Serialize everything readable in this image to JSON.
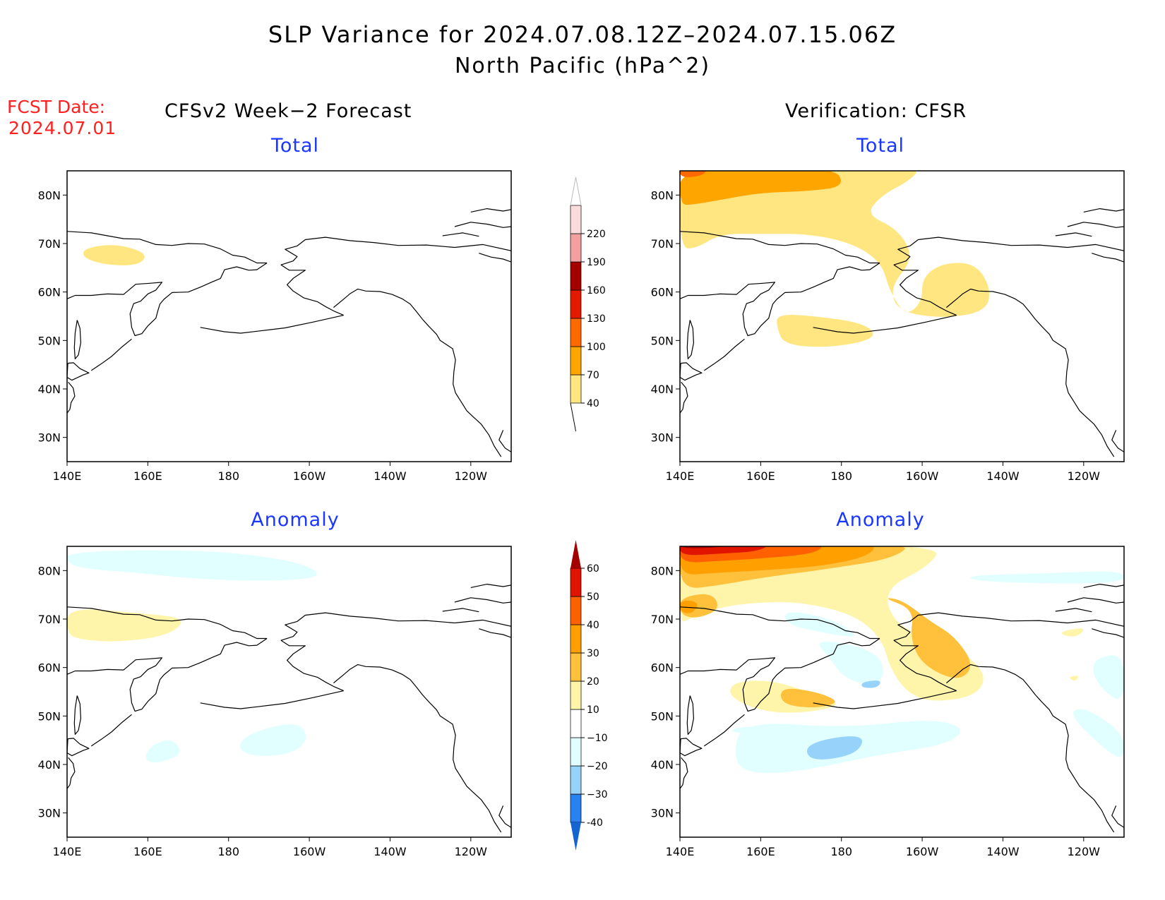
{
  "title": {
    "line1": "SLP Variance for 2024.07.08.12Z–2024.07.15.06Z",
    "line2": "North Pacific (hPa^2)"
  },
  "forecast_date": {
    "label": "FCST Date:",
    "value": "2024.07.01"
  },
  "columns": {
    "left": "CFSv2 Week−2 Forecast",
    "right": "Verification: CFSR"
  },
  "panels": {
    "top_left_title": "Total",
    "top_right_title": "Total",
    "bottom_left_title": "Anomaly",
    "bottom_right_title": "Anomaly"
  },
  "axes": {
    "lat_labels": [
      "80N",
      "70N",
      "60N",
      "50N",
      "40N",
      "30N"
    ],
    "lat_values": [
      80,
      70,
      60,
      50,
      40,
      30
    ],
    "lon_labels": [
      "140E",
      "160E",
      "180",
      "160W",
      "140W",
      "120W"
    ],
    "lon_values": [
      140,
      160,
      180,
      200,
      220,
      240
    ],
    "lat_range": [
      25,
      85
    ],
    "lon_range": [
      140,
      250
    ]
  },
  "colorbars": {
    "total": {
      "levels": [
        40,
        70,
        100,
        130,
        160,
        190,
        220
      ],
      "labels": [
        "40",
        "70",
        "100",
        "130",
        "160",
        "190",
        "220"
      ],
      "colors": [
        "#ffe680",
        "#ffa500",
        "#ff6a00",
        "#e31a00",
        "#a50000",
        "#f4a0a0",
        "#fbdcdc"
      ]
    },
    "anomaly": {
      "levels": [
        -40,
        -30,
        -20,
        -10,
        10,
        20,
        30,
        40,
        50,
        60
      ],
      "labels": [
        "-40",
        "−30",
        "−20",
        "−10",
        "10",
        "20",
        "30",
        "40",
        "50",
        "60"
      ],
      "colors": [
        "#1464d2",
        "#2882f0",
        "#96d2fa",
        "#e1ffff",
        "#ffffff",
        "#fff5aa",
        "#ffc03c",
        "#ffa000",
        "#ff6000",
        "#e11400",
        "#a50000"
      ]
    }
  }
}
